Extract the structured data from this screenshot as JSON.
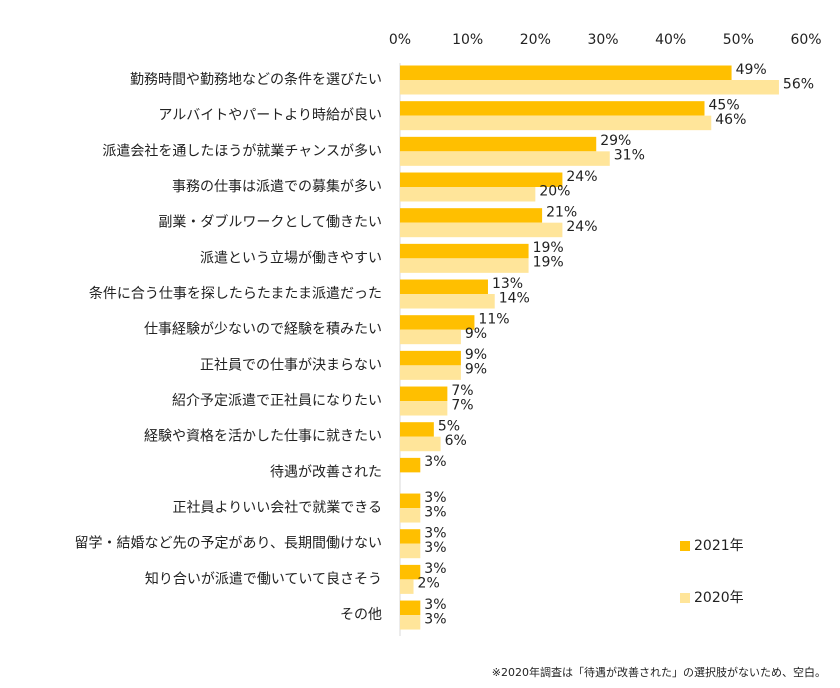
{
  "chart_data": {
    "type": "hbar",
    "categories": [
      "勤務時間や勤務地などの条件を選びたい",
      "アルバイトやパートより時給が良い",
      "派遣会社を通したほうが就業チャンスが多い",
      "事務の仕事は派遣での募集が多い",
      "副業・ダブルワークとして働きたい",
      "派遣という立場が働きやすい",
      "条件に合う仕事を探したらたまたま派遣だった",
      "仕事経験が少ないので経験を積みたい",
      "正社員での仕事が決まらない",
      "紹介予定派遣で正社員になりたい",
      "経験や資格を活かした仕事に就きたい",
      "待遇が改善された",
      "正社員よりいい会社で就業できる",
      "留学・結婚など先の予定があり、長期間働けない",
      "知り合いが派遣で働いていて良さそう",
      "その他"
    ],
    "series": [
      {
        "name": "2021年",
        "color": "#ffbf00",
        "values": [
          49,
          45,
          29,
          24,
          21,
          19,
          13,
          11,
          9,
          7,
          5,
          3,
          3,
          3,
          3,
          3
        ],
        "value_labels": [
          "49%",
          "45%",
          "29%",
          "24%",
          "21%",
          "19%",
          "13%",
          "11%",
          "9%",
          "7%",
          "5%",
          "3%",
          "3%",
          "3%",
          "3%",
          "3%"
        ]
      },
      {
        "name": "2020年",
        "color": "#ffe59a",
        "values": [
          56,
          46,
          31,
          20,
          24,
          19,
          14,
          9,
          9,
          7,
          6,
          null,
          3,
          3,
          2,
          3
        ],
        "value_labels": [
          "56%",
          "46%",
          "31%",
          "20%",
          "24%",
          "19%",
          "14%",
          "9%",
          "9%",
          "7%",
          "6%",
          null,
          "3%",
          "3%",
          "2%",
          "3%"
        ]
      }
    ],
    "xlim": [
      0,
      60
    ],
    "xticks": [
      {
        "value": 0,
        "label": "0%"
      },
      {
        "value": 10,
        "label": "10%"
      },
      {
        "value": 20,
        "label": "20%"
      },
      {
        "value": 30,
        "label": "30%"
      },
      {
        "value": 40,
        "label": "40%"
      },
      {
        "value": 50,
        "label": "50%"
      },
      {
        "value": 60,
        "label": "60%"
      }
    ],
    "note": "※2020年調査は「待遇が改善された」の選択肢がないため、空白。",
    "legend": "right"
  }
}
